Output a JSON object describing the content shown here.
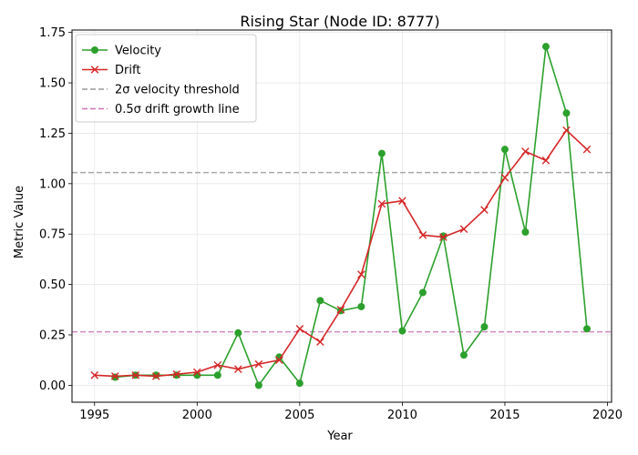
{
  "chart_data": {
    "type": "line",
    "title": "Rising Star (Node ID: 8777)",
    "xlabel": "Year",
    "ylabel": "Metric Value",
    "xlim": [
      1993.9,
      2020.2
    ],
    "ylim": [
      -0.084,
      1.762
    ],
    "x_ticks": [
      1995,
      2000,
      2005,
      2010,
      2015,
      2020
    ],
    "y_ticks": [
      0.0,
      0.25,
      0.5,
      0.75,
      1.0,
      1.25,
      1.5,
      1.75
    ],
    "y_tick_labels": [
      "0.00",
      "0.25",
      "0.50",
      "0.75",
      "1.00",
      "1.25",
      "1.50",
      "1.75"
    ],
    "grid": true,
    "legend_position": "upper-left",
    "series": [
      {
        "name": "Velocity",
        "color": "#2ca02c",
        "marker": "circle",
        "x": [
          1996,
          1997,
          1998,
          1999,
          2000,
          2001,
          2002,
          2003,
          2004,
          2005,
          2006,
          2007,
          2008,
          2009,
          2010,
          2011,
          2012,
          2013,
          2014,
          2015,
          2016,
          2017,
          2018,
          2019
        ],
        "y": [
          0.04,
          0.05,
          0.05,
          0.05,
          0.05,
          0.05,
          0.26,
          0.0,
          0.14,
          0.01,
          0.42,
          0.37,
          0.39,
          1.15,
          0.27,
          0.46,
          0.74,
          0.15,
          0.29,
          1.17,
          0.76,
          1.68,
          1.35,
          0.28
        ]
      },
      {
        "name": "Drift",
        "color": "#d62728",
        "marker": "x",
        "x": [
          1995,
          1996,
          1997,
          1998,
          1999,
          2000,
          2001,
          2002,
          2003,
          2004,
          2005,
          2006,
          2007,
          2008,
          2009,
          2010,
          2011,
          2012,
          2013,
          2014,
          2015,
          2016,
          2017,
          2018,
          2019
        ],
        "y": [
          0.05,
          0.045,
          0.05,
          0.045,
          0.055,
          0.065,
          0.1,
          0.08,
          0.105,
          0.125,
          0.28,
          0.215,
          0.375,
          0.55,
          0.9,
          0.915,
          0.745,
          0.735,
          0.775,
          0.87,
          1.03,
          1.16,
          1.115,
          1.265,
          1.17
        ]
      }
    ],
    "reference_lines": [
      {
        "name": "2σ velocity threshold",
        "y": 1.055,
        "color": "#999999",
        "style": "dashed"
      },
      {
        "name": "0.5σ drift growth line",
        "y": 0.265,
        "color": "#c875b4",
        "style": "dashed"
      }
    ]
  }
}
